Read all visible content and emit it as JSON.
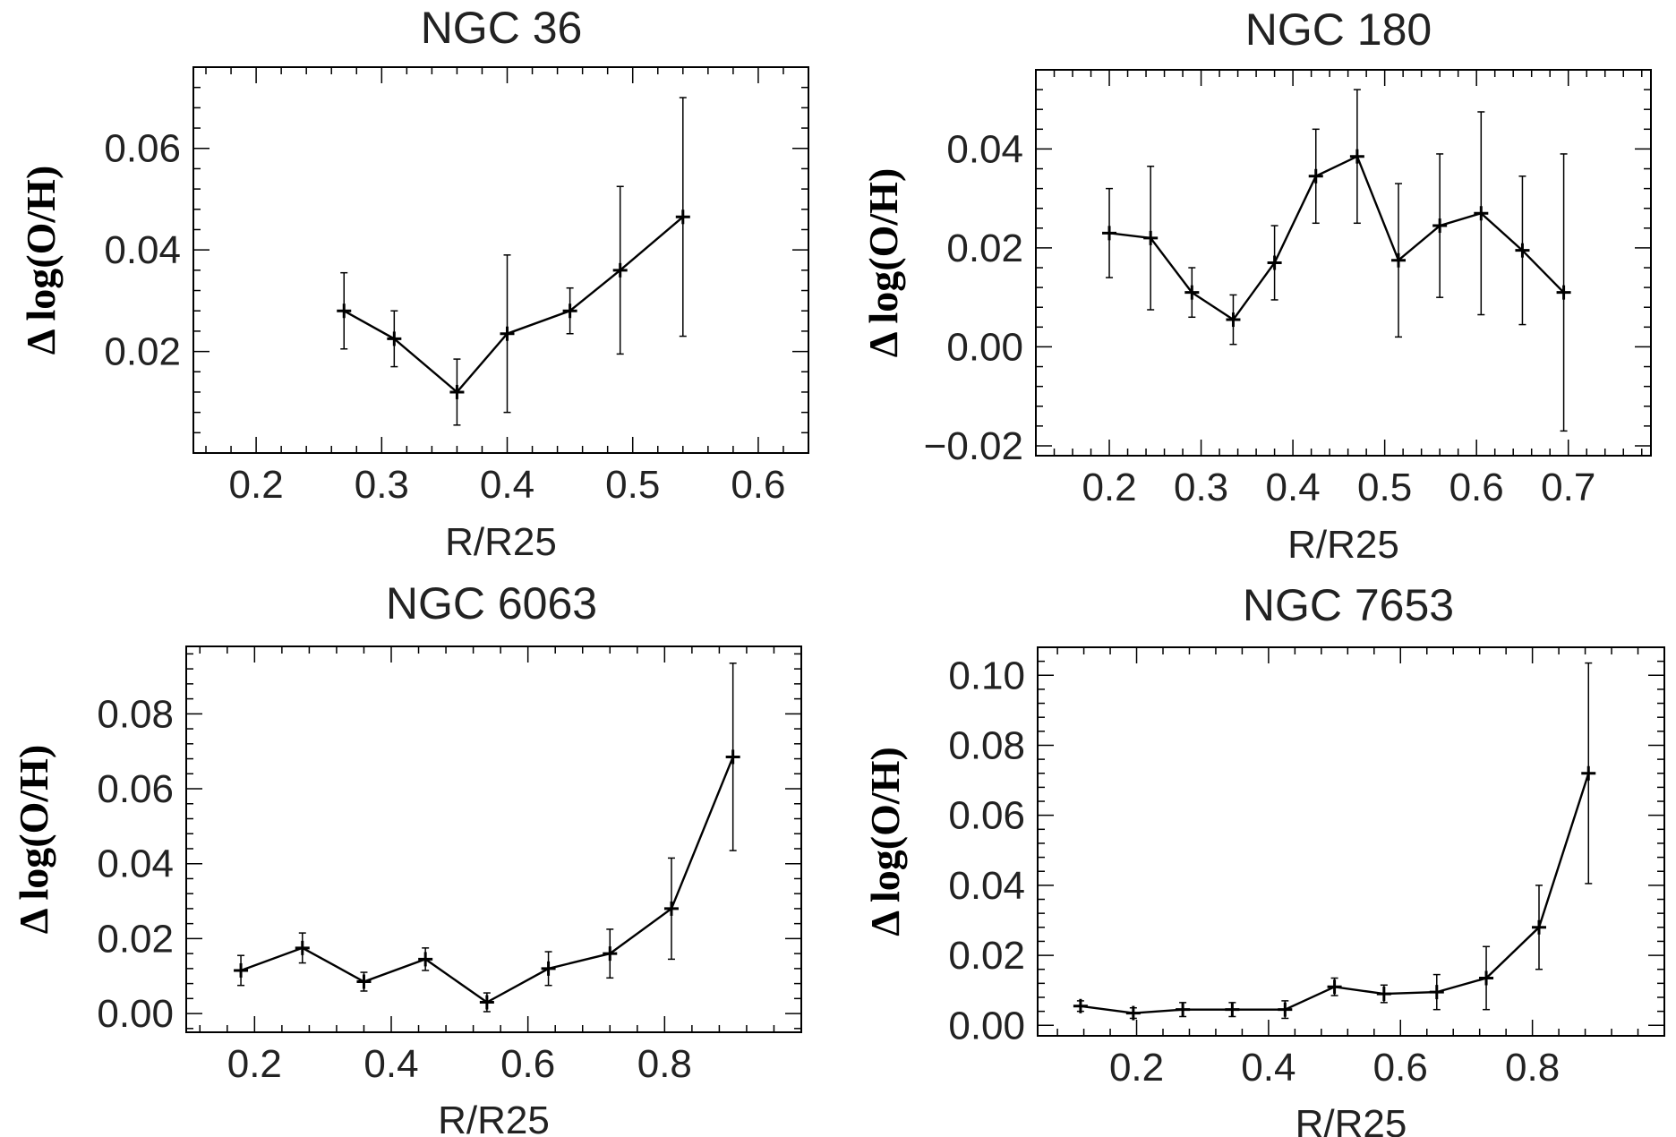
{
  "chart_data": [
    {
      "type": "line",
      "title": "NGC 36",
      "xlabel": "R/R25",
      "ylabel": "Δ log(O/H)",
      "xlim": [
        0.15,
        0.64
      ],
      "ylim": [
        0.0,
        0.076
      ],
      "xticks": [
        0.2,
        0.3,
        0.4,
        0.5,
        0.6
      ],
      "xtick_labels": [
        "0.2",
        "0.3",
        "0.4",
        "0.5",
        "0.6"
      ],
      "yticks": [
        0.02,
        0.04,
        0.06
      ],
      "ytick_labels": [
        "0.02",
        "0.04",
        "0.06"
      ],
      "x": [
        0.27,
        0.31,
        0.36,
        0.4,
        0.45,
        0.49,
        0.54
      ],
      "y": [
        0.028,
        0.0225,
        0.012,
        0.0235,
        0.028,
        0.036,
        0.0465
      ],
      "yerr": [
        0.0075,
        0.0055,
        0.0065,
        0.0155,
        0.0045,
        0.0165,
        0.0235
      ]
    },
    {
      "type": "line",
      "title": "NGC 180",
      "xlabel": "R/R25",
      "ylabel": "Δ log(O/H)",
      "xlim": [
        0.12,
        0.79
      ],
      "ylim": [
        -0.022,
        0.056
      ],
      "xticks": [
        0.2,
        0.3,
        0.4,
        0.5,
        0.6,
        0.7
      ],
      "xtick_labels": [
        "0.2",
        "0.3",
        "0.4",
        "0.5",
        "0.6",
        "0.7"
      ],
      "yticks": [
        -0.02,
        0.0,
        0.02,
        0.04
      ],
      "ytick_labels": [
        "−0.02",
        "0.00",
        "0.02",
        "0.04"
      ],
      "x": [
        0.2,
        0.245,
        0.29,
        0.335,
        0.38,
        0.425,
        0.47,
        0.515,
        0.56,
        0.605,
        0.65,
        0.695
      ],
      "y": [
        0.023,
        0.022,
        0.011,
        0.0055,
        0.017,
        0.0345,
        0.0385,
        0.0175,
        0.0245,
        0.027,
        0.0195,
        0.011
      ],
      "yerr": [
        0.009,
        0.0145,
        0.005,
        0.005,
        0.0075,
        0.0095,
        0.0135,
        0.0155,
        0.0145,
        0.0205,
        0.015,
        0.028
      ]
    },
    {
      "type": "line",
      "title": "NGC 6063",
      "xlabel": "R/R25",
      "ylabel": "Δ log(O/H)",
      "xlim": [
        0.1,
        1.0
      ],
      "ylim": [
        -0.005,
        0.098
      ],
      "xticks": [
        0.2,
        0.4,
        0.6,
        0.8
      ],
      "xtick_labels": [
        "0.2",
        "0.4",
        "0.6",
        "0.8"
      ],
      "yticks": [
        0.0,
        0.02,
        0.04,
        0.06,
        0.08
      ],
      "ytick_labels": [
        "0.00",
        "0.02",
        "0.04",
        "0.06",
        "0.08"
      ],
      "x": [
        0.18,
        0.27,
        0.36,
        0.45,
        0.54,
        0.63,
        0.72,
        0.81,
        0.9
      ],
      "y": [
        0.0115,
        0.0175,
        0.0085,
        0.0145,
        0.003,
        0.012,
        0.016,
        0.028,
        0.0685
      ],
      "yerr": [
        0.004,
        0.004,
        0.0025,
        0.003,
        0.0025,
        0.0045,
        0.0065,
        0.0135,
        0.025
      ]
    },
    {
      "type": "line",
      "title": "NGC 7653",
      "xlabel": "R/R25",
      "ylabel": "Δ log(O/H)",
      "xlim": [
        0.05,
        1.0
      ],
      "ylim": [
        -0.003,
        0.108
      ],
      "xticks": [
        0.2,
        0.4,
        0.6,
        0.8
      ],
      "xtick_labels": [
        "0.2",
        "0.4",
        "0.6",
        "0.8"
      ],
      "yticks": [
        0.0,
        0.02,
        0.04,
        0.06,
        0.08,
        0.1
      ],
      "ytick_labels": [
        "0.00",
        "0.02",
        "0.04",
        "0.06",
        "0.08",
        "0.10"
      ],
      "x": [
        0.115,
        0.195,
        0.27,
        0.345,
        0.425,
        0.5,
        0.575,
        0.655,
        0.73,
        0.81,
        0.885
      ],
      "y": [
        0.0055,
        0.0035,
        0.0045,
        0.0045,
        0.0045,
        0.011,
        0.009,
        0.0095,
        0.0135,
        0.028,
        0.072
      ],
      "yerr": [
        0.0015,
        0.0015,
        0.002,
        0.002,
        0.0025,
        0.0025,
        0.0025,
        0.005,
        0.009,
        0.012,
        0.0315
      ]
    }
  ]
}
